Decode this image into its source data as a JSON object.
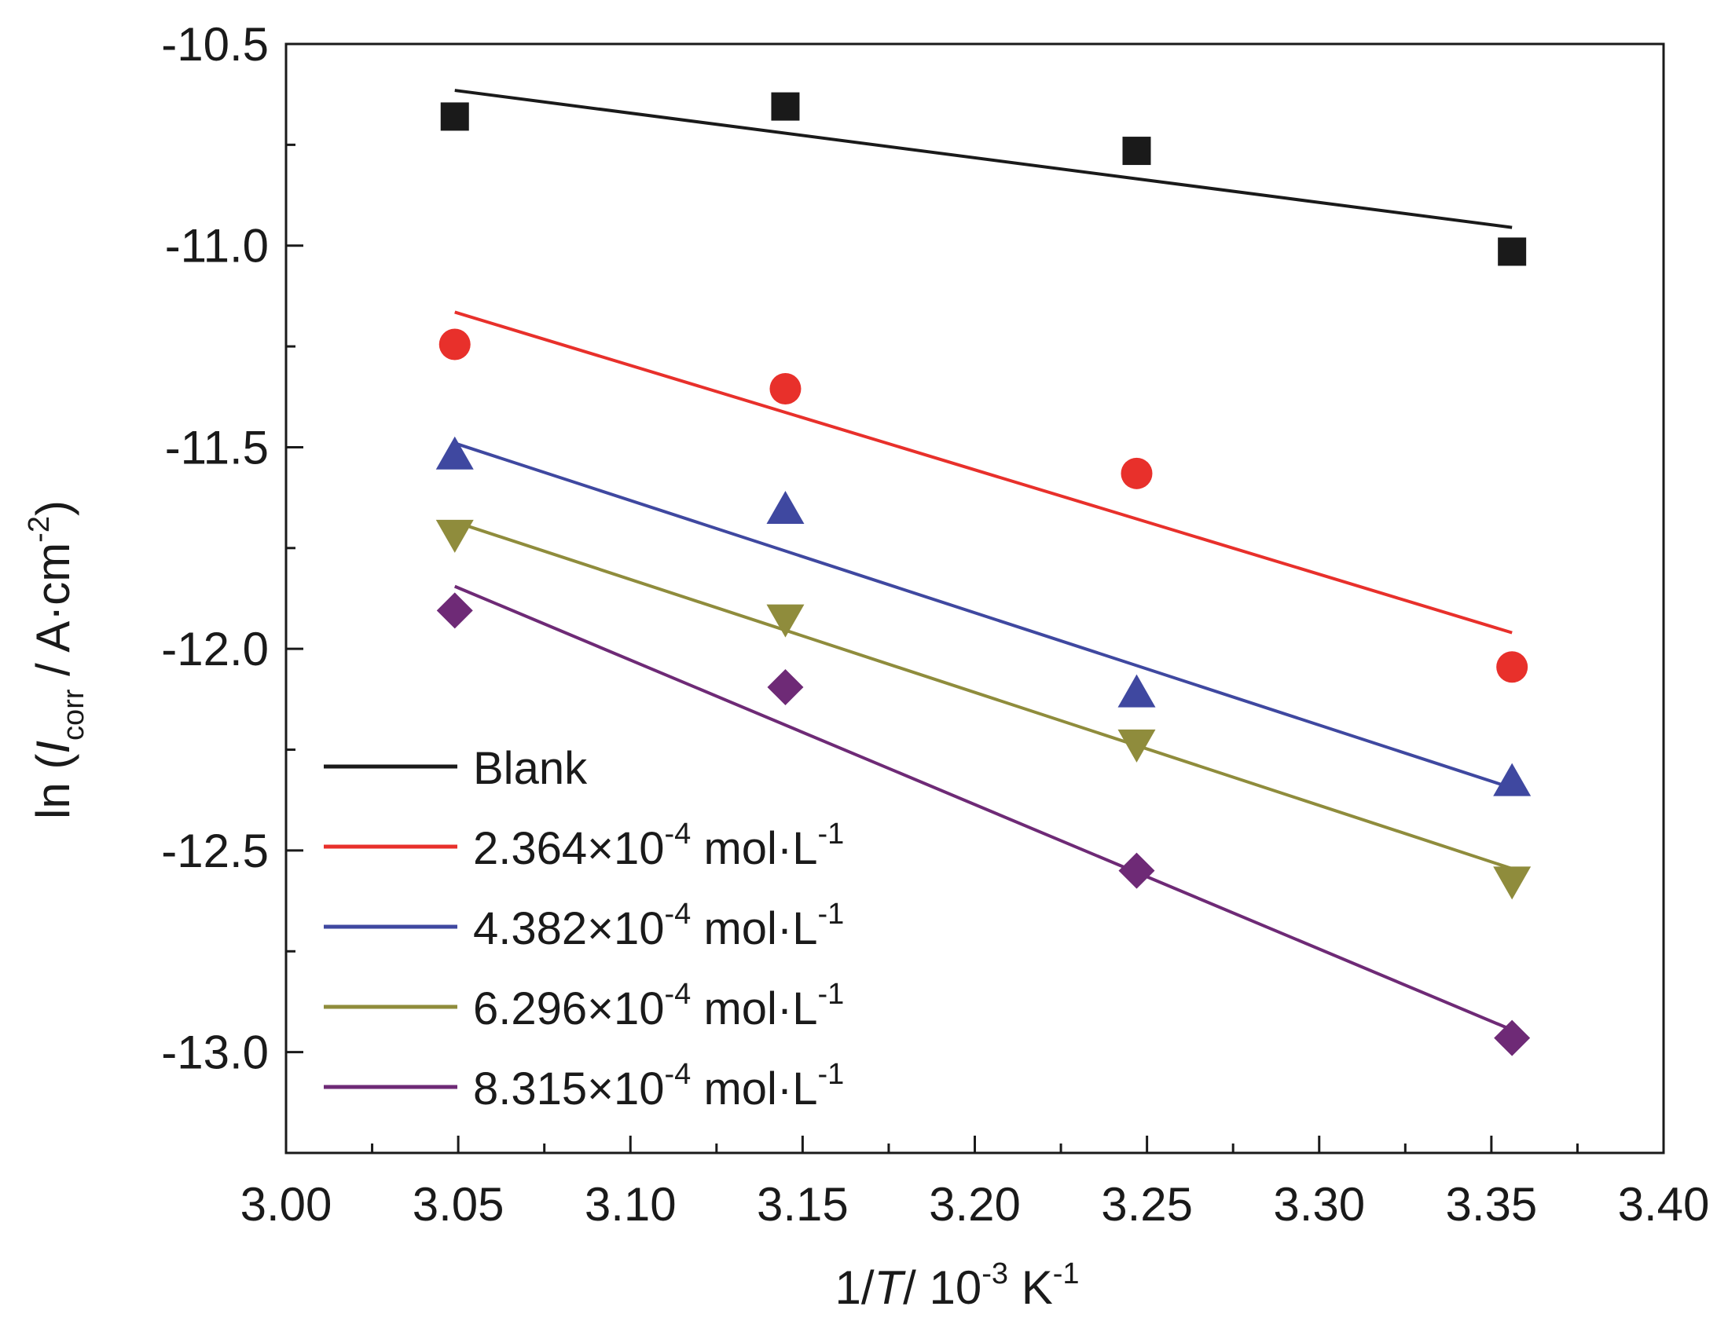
{
  "chart_data": {
    "type": "scatter",
    "title": "",
    "xlabel": "1/T/ 10^-3 K^-1",
    "ylabel": "ln (I_corr / A·cm^-2)",
    "xlim": [
      3.0,
      3.4
    ],
    "ylim": [
      -13.25,
      -10.5
    ],
    "x_ticks": [
      "3.00",
      "3.05",
      "3.10",
      "3.15",
      "3.20",
      "3.25",
      "3.30",
      "3.35",
      "3.40"
    ],
    "y_ticks": [
      "-10.5",
      "-11.0",
      "-11.5",
      "-12.0",
      "-12.5",
      "-13.0"
    ],
    "grid": false,
    "legend_position": "bottom-left",
    "x": [
      3.049,
      3.145,
      3.247,
      3.356
    ],
    "series": [
      {
        "name": "Blank",
        "marker": "square",
        "color": "#1a1a1a",
        "values": [
          -10.68,
          -10.655,
          -10.765,
          -11.015
        ],
        "fit": {
          "x": [
            3.049,
            3.356
          ],
          "y": [
            -10.615,
            -10.955
          ]
        }
      },
      {
        "name": "2.364×10-4 mol·L-1",
        "marker": "circle",
        "color": "#e8302b",
        "values": [
          -11.245,
          -11.355,
          -11.565,
          -12.045
        ],
        "fit": {
          "x": [
            3.049,
            3.356
          ],
          "y": [
            -11.165,
            -11.96
          ]
        }
      },
      {
        "name": "4.382×10-4 mol·L-1",
        "marker": "triangle-up",
        "color": "#3f48a0",
        "values": [
          -11.52,
          -11.655,
          -12.11,
          -12.33
        ],
        "fit": {
          "x": [
            3.049,
            3.356
          ],
          "y": [
            -11.49,
            -12.345
          ]
        }
      },
      {
        "name": "6.296×10-4 mol·L-1",
        "marker": "triangle-down",
        "color": "#8f8c3c",
        "values": [
          -11.715,
          -11.925,
          -12.235,
          -12.575
        ],
        "fit": {
          "x": [
            3.049,
            3.356
          ],
          "y": [
            -11.685,
            -12.545
          ]
        }
      },
      {
        "name": "8.315×10-4 mol·L-1",
        "marker": "diamond",
        "color": "#6e2a76",
        "values": [
          -11.905,
          -12.095,
          -12.55,
          -12.965
        ],
        "fit": {
          "x": [
            3.049,
            3.356
          ],
          "y": [
            -11.845,
            -12.945
          ]
        }
      }
    ]
  },
  "legend_text": {
    "items": [
      {
        "base": "Blank",
        "sup": "",
        "unit": "",
        "unit_sup": ""
      },
      {
        "base": "2.364×10",
        "sup": "-4",
        "unit": " mol·L",
        "unit_sup": "-1"
      },
      {
        "base": "4.382×10",
        "sup": "-4",
        "unit": " mol·L",
        "unit_sup": "-1"
      },
      {
        "base": "6.296×10",
        "sup": "-4",
        "unit": " mol·L",
        "unit_sup": "-1"
      },
      {
        "base": "8.315×10",
        "sup": "-4",
        "unit": " mol·L",
        "unit_sup": "-1"
      }
    ]
  },
  "axis_text": {
    "x": {
      "a": "1/",
      "b": "T",
      "c": "/ 10",
      "d": "-3",
      "e": " K",
      "f": "-1"
    },
    "y": {
      "a": "ln (",
      "b": "I",
      "c": "corr",
      "d": " / A·cm",
      "e": "-2",
      "f": ")"
    }
  }
}
